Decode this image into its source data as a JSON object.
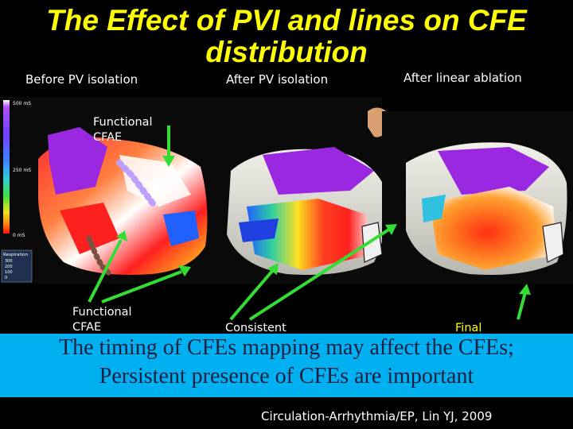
{
  "slide": {
    "title_line1": "The Effect of PVI and lines on CFE",
    "title_line2": "distribution",
    "panel_labels": {
      "before": "Before  PV isolation",
      "after_pvi": "After PV isolation",
      "after_linear": "After linear ablation"
    },
    "annotations": {
      "functional_cfae_top_line1": "Functional",
      "functional_cfae_top_line2": "CFAE",
      "functional_cfae_bottom_line1": "Functional",
      "functional_cfae_bottom_line2": "CFAE",
      "consistent": "Consistent",
      "final": "Final"
    },
    "map_scale": {
      "top": "500 mS",
      "mid": "250 mS",
      "bottom": "0 mS",
      "respiration_title": "Respiration",
      "respiration_rows": [
        "300",
        "200",
        "100",
        "0"
      ]
    },
    "banner_line1": "The timing of CFEs mapping may affect the CFEs;",
    "banner_line2": "Persistent presence of CFEs are important",
    "citation": "Circulation-Arrhythmia/EP, Lin YJ, 2009",
    "colors": {
      "title": "#ffff00",
      "banner_bg": "#00b0f0",
      "arrow": "#33dd33",
      "cfe_purple": "#9a28e0"
    }
  }
}
